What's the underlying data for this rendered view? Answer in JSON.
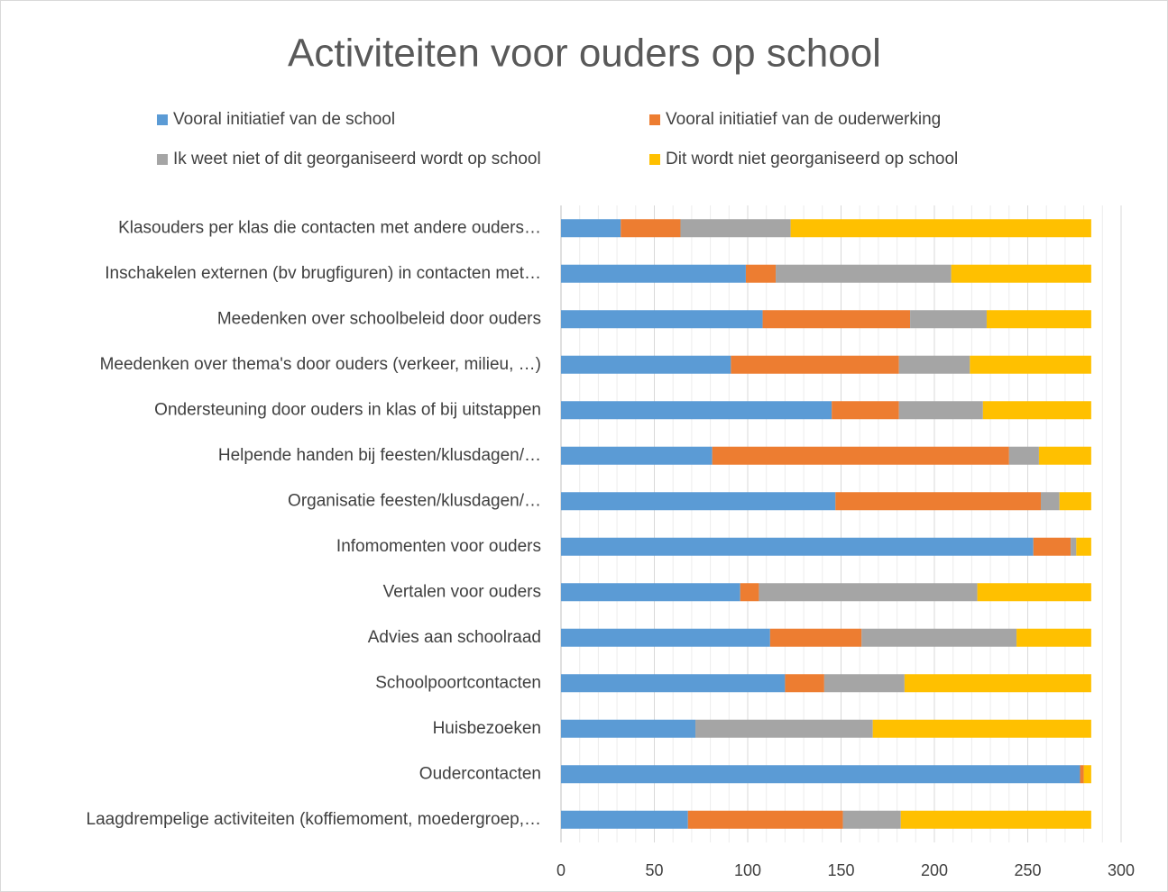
{
  "chart_data": {
    "type": "stacked_barh",
    "title": "Activiteiten voor ouders op school",
    "categories": [
      "Klasouders per klas die contacten met andere ouders…",
      "Inschakelen externen (bv brugfiguren) in contacten met…",
      "Meedenken over schoolbeleid door ouders",
      "Meedenken over thema's door ouders (verkeer, milieu, …)",
      "Ondersteuning door ouders in klas of bij uitstappen",
      "Helpende handen bij feesten/klusdagen/…",
      "Organisatie feesten/klusdagen/…",
      "Infomomenten voor ouders",
      "Vertalen voor ouders",
      "Advies aan schoolraad",
      "Schoolpoortcontacten",
      "Huisbezoeken",
      "Oudercontacten",
      "Laagdrempelige activiteiten (koffiemoment, moedergroep,…"
    ],
    "series": [
      {
        "name": "Vooral initiatief van de school",
        "color": "#5b9bd5",
        "values": [
          32,
          99,
          108,
          91,
          145,
          81,
          147,
          253,
          96,
          112,
          120,
          72,
          278,
          68
        ]
      },
      {
        "name": "Vooral initiatief van de ouderwerking",
        "color": "#ed7d31",
        "values": [
          32,
          16,
          79,
          90,
          36,
          159,
          110,
          20,
          10,
          49,
          21,
          0,
          2,
          83
        ]
      },
      {
        "name": "Ik weet niet of dit georganiseerd wordt op school",
        "color": "#a5a5a5",
        "values": [
          59,
          94,
          41,
          38,
          45,
          16,
          10,
          3,
          117,
          83,
          43,
          95,
          0,
          31
        ]
      },
      {
        "name": "Dit wordt niet georganiseerd op school",
        "color": "#ffc000",
        "values": [
          161,
          75,
          56,
          65,
          58,
          28,
          17,
          8,
          61,
          40,
          100,
          117,
          4,
          102
        ]
      }
    ],
    "xlim": [
      0,
      300
    ],
    "xticks": [
      0,
      50,
      100,
      150,
      200,
      250,
      300
    ],
    "minor_xgrid": [
      10,
      20,
      30,
      40,
      60,
      70,
      80,
      90,
      110,
      120,
      130,
      140,
      160,
      170,
      180,
      190,
      210,
      220,
      230,
      240,
      260,
      270,
      280,
      290
    ],
    "grid": true,
    "legend": "top"
  }
}
